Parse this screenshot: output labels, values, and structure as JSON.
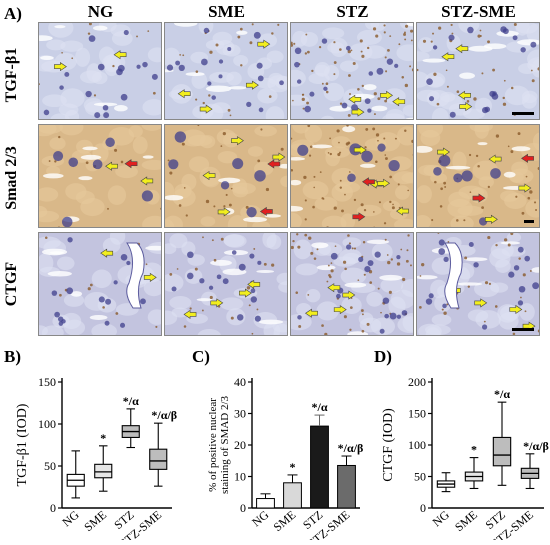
{
  "figure": {
    "panel_a_label": "A)",
    "columns": [
      "NG",
      "SME",
      "STZ",
      "STZ-SME"
    ],
    "rows": [
      "TGF-β1",
      "Smad 2/3",
      "CTGF"
    ],
    "palette": {
      "tgf_bg": "#c9cfe6",
      "smad_bg": "#d9b889",
      "ctgf_bg": "#c3c4df",
      "nucleus": "#3f3f8c",
      "yellow_arrow": "#f2ee1e",
      "red_arrow": "#e02020",
      "brown_stain": "#8a5a2a"
    }
  },
  "chart_data": [
    {
      "type": "box",
      "panel": "B)",
      "ylabel": "TGF-β1 (IOD)",
      "categories": [
        "NG",
        "SME",
        "STZ",
        "STZ-SME"
      ],
      "ylim": [
        0,
        150
      ],
      "yticks": [
        0,
        50,
        100,
        150
      ],
      "boxes": [
        {
          "min": 12,
          "q1": 26,
          "median": 33,
          "q3": 40,
          "max": 68,
          "fill": "#ffffff",
          "annotation": ""
        },
        {
          "min": 20,
          "q1": 36,
          "median": 43,
          "q3": 52,
          "max": 74,
          "fill": "#e6e6e6",
          "annotation": "*"
        },
        {
          "min": 72,
          "q1": 84,
          "median": 91,
          "q3": 98,
          "max": 118,
          "fill": "#bdbdbd",
          "annotation": "*/α"
        },
        {
          "min": 26,
          "q1": 46,
          "median": 56,
          "q3": 70,
          "max": 101,
          "fill": "#bdbdbd",
          "annotation": "*/α/β"
        }
      ]
    },
    {
      "type": "bar",
      "panel": "C)",
      "ylabel": "% of positive nuclear staining of SMAD 2/3",
      "categories": [
        "NG",
        "SME",
        "STZ",
        "STZ-SME"
      ],
      "values": [
        3,
        8,
        26,
        13.5
      ],
      "errors": [
        1.5,
        2.5,
        3.5,
        3
      ],
      "colors": [
        "#ffffff",
        "#d9d9d9",
        "#1a1a1a",
        "#6b6b6b"
      ],
      "annotations": [
        "",
        "*",
        "*/α",
        "*/α/β"
      ],
      "ylim": [
        0,
        40
      ],
      "yticks": [
        0,
        10,
        20,
        30,
        40
      ]
    },
    {
      "type": "box",
      "panel": "D)",
      "ylabel": "CTGF (IOD)",
      "categories": [
        "NG",
        "SME",
        "STZ",
        "STZ-SME"
      ],
      "ylim": [
        0,
        200
      ],
      "yticks": [
        0,
        50,
        100,
        150,
        200
      ],
      "boxes": [
        {
          "min": 26,
          "q1": 33,
          "median": 38,
          "q3": 43,
          "max": 56,
          "fill": "#ffffff",
          "annotation": ""
        },
        {
          "min": 31,
          "q1": 43,
          "median": 50,
          "q3": 57,
          "max": 80,
          "fill": "#e6e6e6",
          "annotation": "*"
        },
        {
          "min": 36,
          "q1": 67,
          "median": 84,
          "q3": 112,
          "max": 168,
          "fill": "#bdbdbd",
          "annotation": "*/α"
        },
        {
          "min": 31,
          "q1": 47,
          "median": 55,
          "q3": 63,
          "max": 86,
          "fill": "#bdbdbd",
          "annotation": "*/α/β"
        }
      ]
    }
  ]
}
